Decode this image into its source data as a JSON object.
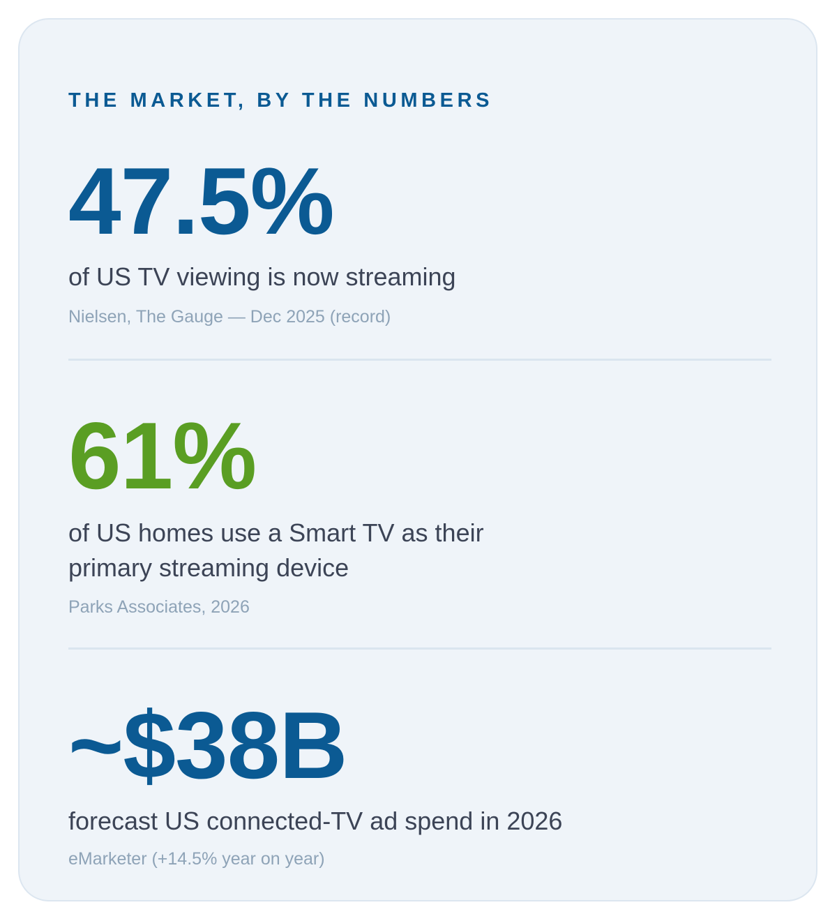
{
  "section": {
    "eyebrow": "THE MARKET, BY THE NUMBERS"
  },
  "stats": [
    {
      "value": "47.5%",
      "description": "of US TV viewing is now streaming",
      "source": "Nielsen, The Gauge — Dec 2025 (record)",
      "value_color": "#0b5a93"
    },
    {
      "value": "61%",
      "description": "of US homes use a Smart TV as their primary streaming device",
      "source": "Parks Associates, 2026",
      "value_color": "#5a9e23"
    },
    {
      "value": "~$38B",
      "description": "forecast US connected-TV ad spend in 2026",
      "source": "eMarketer (+14.5% year on year)",
      "value_color": "#0b5a93"
    }
  ],
  "colors": {
    "card_background": "#eff4f9",
    "card_border": "#dce6f0",
    "accent_blue": "#0b5a93",
    "accent_green": "#5a9e23",
    "body_text": "#3c4456",
    "source_text": "#8ea3b7",
    "divider": "#dae5ef"
  }
}
